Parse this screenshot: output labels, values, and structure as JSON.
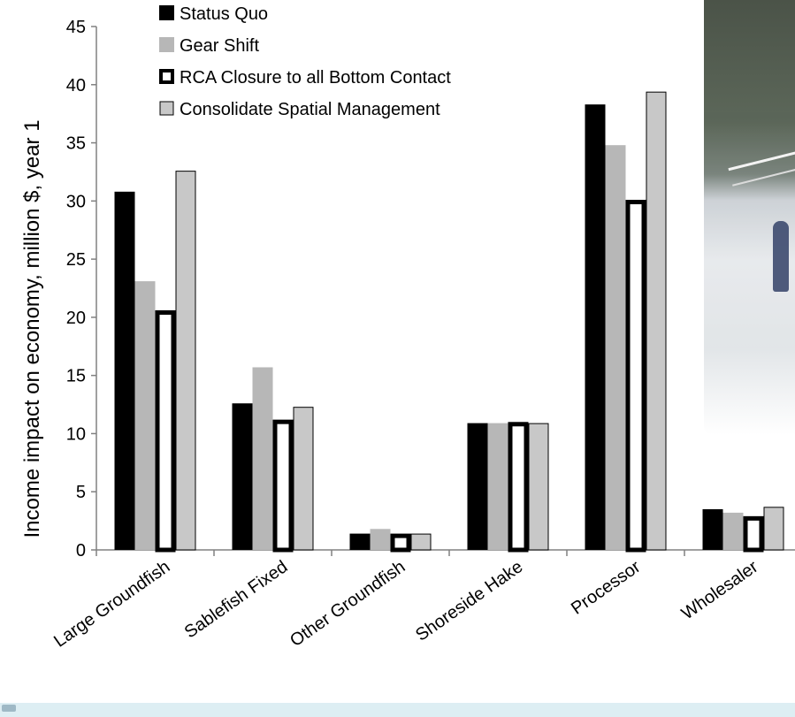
{
  "chart_data": {
    "type": "bar",
    "ylabel": "Income  impact on economy, million $, year 1",
    "ylim": [
      0,
      45
    ],
    "yticks": [
      0,
      5,
      10,
      15,
      20,
      25,
      30,
      35,
      40,
      45
    ],
    "categories": [
      "Large Groundfish",
      "Sablefish Fixed",
      "Other Groundfish",
      "Shoreside Hake",
      "Processor",
      "Wholesaler"
    ],
    "series": [
      {
        "name": "Status Quo",
        "color": "#000000",
        "style": "solid",
        "values": [
          30.8,
          12.6,
          1.4,
          10.9,
          38.3,
          3.5
        ]
      },
      {
        "name": "Gear Shift",
        "color": "#b7b7b7",
        "style": "solid",
        "values": [
          23.1,
          15.7,
          1.8,
          10.9,
          34.8,
          3.2
        ]
      },
      {
        "name": "RCA Closure to all Bottom Contact",
        "color": "#000000",
        "style": "outline",
        "values": [
          20.6,
          11.2,
          1.4,
          11.0,
          30.1,
          2.9
        ]
      },
      {
        "name": "Consolidate Spatial Management",
        "color": "#c8c8c8",
        "style": "outlined-light",
        "values": [
          32.6,
          12.3,
          1.4,
          10.9,
          39.4,
          3.7
        ]
      }
    ],
    "grid": false,
    "legend_position": "top-left"
  }
}
